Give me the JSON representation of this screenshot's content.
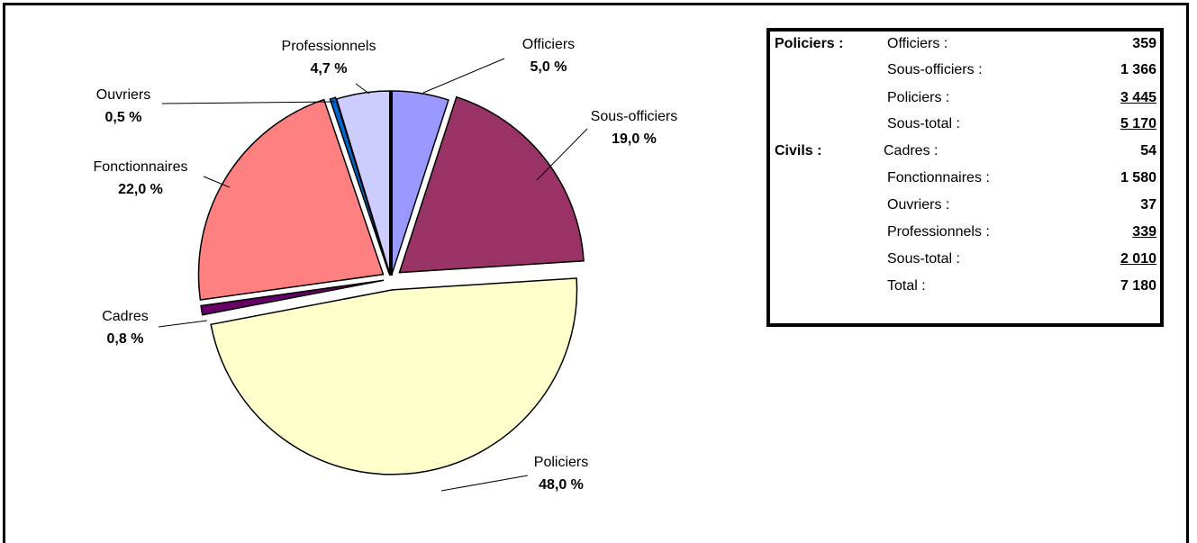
{
  "chart_data": {
    "type": "pie",
    "exploded": true,
    "start_angle": "12 o'clock, clockwise",
    "slices": [
      {
        "label": "Officiers",
        "pct_label": "5,0 %",
        "value": 5.0,
        "color": "#9999ff"
      },
      {
        "label": "Sous-officiers",
        "pct_label": "19,0 %",
        "value": 19.0,
        "color": "#993366"
      },
      {
        "label": "Policiers",
        "pct_label": "48,0 %",
        "value": 48.0,
        "color": "#ffffcc"
      },
      {
        "label": "Cadres",
        "pct_label": "0,8 %",
        "value": 0.8,
        "color": "#660066"
      },
      {
        "label": "Fonctionnaires",
        "pct_label": "22,0 %",
        "value": 22.0,
        "color": "#ff8080"
      },
      {
        "label": "Ouvriers",
        "pct_label": "0,5 %",
        "value": 0.5,
        "color": "#0066cc"
      },
      {
        "label": "Professionnels",
        "pct_label": "4,7 %",
        "value": 4.7,
        "color": "#ccccff"
      }
    ]
  },
  "table": {
    "rows": [
      {
        "group": "Policiers :",
        "item": "Officiers :",
        "value": "359",
        "underline": false
      },
      {
        "group": "",
        "item": "Sous-officiers :",
        "value": "1 366",
        "underline": false
      },
      {
        "group": "",
        "item": "Policiers :",
        "value": "3 445",
        "underline": true
      },
      {
        "group": "",
        "item": "Sous-total :",
        "value": "5 170",
        "underline": true
      },
      {
        "group": "Civils :",
        "item": "Cadres :",
        "value": "54",
        "underline": false
      },
      {
        "group": "",
        "item": "Fonctionnaires :",
        "value": "1 580",
        "underline": false
      },
      {
        "group": "",
        "item": "Ouvriers :",
        "value": "37",
        "underline": false
      },
      {
        "group": "",
        "item": "Professionnels :",
        "value": "339",
        "underline": true
      },
      {
        "group": "",
        "item": "Sous-total :",
        "value": "2 010",
        "underline": true
      },
      {
        "group": "",
        "item": "Total :",
        "value": "7 180",
        "underline": false
      }
    ]
  }
}
